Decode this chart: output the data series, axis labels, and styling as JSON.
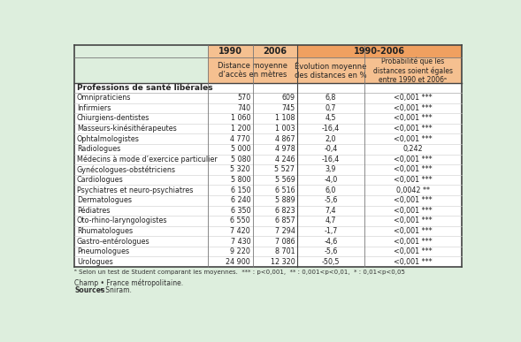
{
  "header1_col1": "1990",
  "header1_col2": "2006",
  "header1_col3": "1990-2006",
  "header2_col12": "Distance moyenne\nd’accès en mètres",
  "header2_col3": "Évolution moyenne\ndes distances en %",
  "header2_col4": "Probabilité que les\ndistances soient égales\nentre 1990 et 2006ᵃ",
  "section_header": "Professions de santé libérales",
  "rows": [
    [
      "Omnipraticiens",
      "570",
      "609",
      "6,8",
      "<0,001 ***"
    ],
    [
      "Infirmiers",
      "740",
      "745",
      "0,7",
      "<0,001 ***"
    ],
    [
      "Chiurgiens-dentistes",
      "1 060",
      "1 108",
      "4,5",
      "<0,001 ***"
    ],
    [
      "Masseurs-kinésithérapeutes",
      "1 200",
      "1 003",
      "-16,4",
      "<0,001 ***"
    ],
    [
      "Ophtalmologistes",
      "4 770",
      "4 867",
      "2,0",
      "<0,001 ***"
    ],
    [
      "Radiologues",
      "5 000",
      "4 978",
      "-0,4",
      "0,242"
    ],
    [
      "Médecins à mode d’exercice particulier",
      "5 080",
      "4 246",
      "-16,4",
      "<0,001 ***"
    ],
    [
      "Gynécologues-obstétriciens",
      "5 320",
      "5 527",
      "3,9",
      "<0,001 ***"
    ],
    [
      "Cardiologues",
      "5 800",
      "5 569",
      "-4,0",
      "<0,001 ***"
    ],
    [
      "Psychiatres et neuro-psychiatres",
      "6 150",
      "6 516",
      "6,0",
      "0,0042 **"
    ],
    [
      "Dermatologues",
      "6 240",
      "5 889",
      "-5,6",
      "<0,001 ***"
    ],
    [
      "Pédiatres",
      "6 350",
      "6 823",
      "7,4",
      "<0,001 ***"
    ],
    [
      "Oto-rhino-laryngologistes",
      "6 550",
      "6 857",
      "4,7",
      "<0,001 ***"
    ],
    [
      "Rhumatologues",
      "7 420",
      "7 294",
      "-1,7",
      "<0,001 ***"
    ],
    [
      "Gastro-entérologues",
      "7 430",
      "7 086",
      "-4,6",
      "<0,001 ***"
    ],
    [
      "Pneumologues",
      "9 220",
      "8 701",
      "-5,6",
      "<0,001 ***"
    ],
    [
      "Urologues",
      "24 900",
      "12 320",
      "-50,5",
      "<0,001 ***"
    ]
  ],
  "footnote": "ᵃ Selon un test de Student comparant les moyennes.  *** : p<0,001,  ** : 0,001<p<0,01,  * : 0,01<p<0,05",
  "champ": "Champ • France métropolitaine.",
  "sources_bold": "Sources",
  "sources_rest": " • Sniram.",
  "bg_color": "#ddeedd",
  "header_orange": "#f0a060",
  "header_light_orange": "#f5c090",
  "border_dark": "#555555",
  "border_light": "#aaaaaa",
  "col_props": [
    0.345,
    0.115,
    0.115,
    0.175,
    0.25
  ]
}
